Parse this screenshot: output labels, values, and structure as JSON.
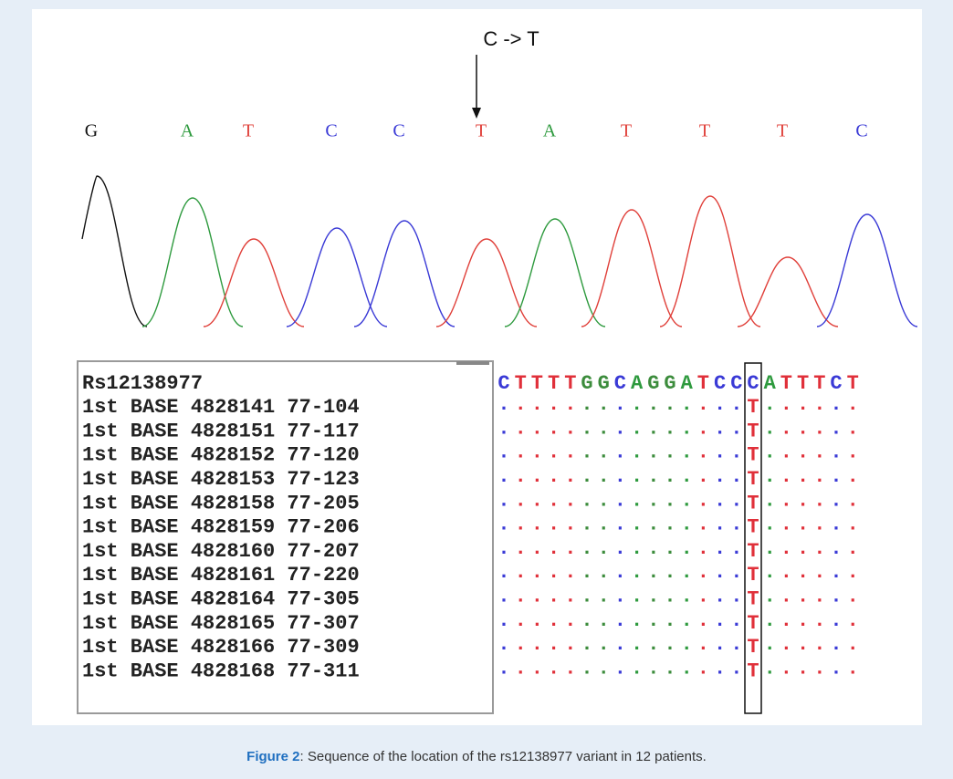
{
  "figure": {
    "annotation": "C -> T",
    "bases": [
      "G",
      "A",
      "T",
      "C",
      "C",
      "T",
      "A",
      "T",
      "T",
      "T",
      "C"
    ],
    "reference": {
      "id": "Rs12138977",
      "sequence": "CTTTTGGCAGGATCCCATTTCT"
    },
    "rows": [
      {
        "label": "1st BASE 4828141 77-104",
        "alignment": "...............T......"
      },
      {
        "label": "1st BASE 4828151 77-117",
        "alignment": "...............T......"
      },
      {
        "label": "1st BASE 4828152 77-120",
        "alignment": "...............T......"
      },
      {
        "label": "1st BASE 4828153 77-123",
        "alignment": "...............T......"
      },
      {
        "label": "1st BASE 4828158 77-205",
        "alignment": "...............T......"
      },
      {
        "label": "1st BASE 4828159 77-206",
        "alignment": "...............T......"
      },
      {
        "label": "1st BASE 4828160 77-207",
        "alignment": "...............T......"
      },
      {
        "label": "1st BASE 4828161 77-220",
        "alignment": "...............T......"
      },
      {
        "label": "1st BASE 4828164 77-305",
        "alignment": "...............T......"
      },
      {
        "label": "1st BASE 4828165 77-307",
        "alignment": "...............T......"
      },
      {
        "label": "1st BASE 4828166 77-309",
        "alignment": "...............T......"
      },
      {
        "label": "1st BASE 4828168 77-311",
        "alignment": "...............T......"
      }
    ],
    "caption": {
      "label": "Figure 2",
      "text": ": Sequence of the location of the rs12138977 variant in 12 patients."
    }
  }
}
